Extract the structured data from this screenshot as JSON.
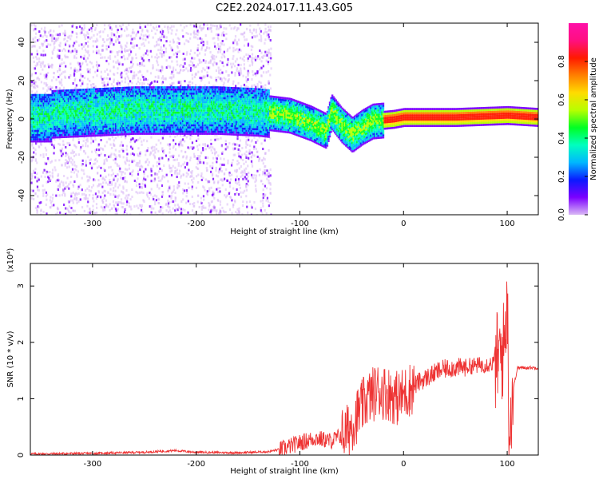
{
  "title": "C2E2.2024.017.11.43.G05",
  "chart_data": [
    {
      "type": "heatmap",
      "xlabel": "Height of straight line (km)",
      "ylabel": "Frequency (Hz)",
      "xlim": [
        -360,
        130
      ],
      "ylim": [
        -50,
        50
      ],
      "xticks": [
        -300,
        -200,
        -100,
        0,
        100
      ],
      "yticks": [
        -40,
        -20,
        0,
        20,
        40
      ],
      "colorbar": {
        "label": "Normalized spectral amplitude",
        "range": [
          0,
          1
        ],
        "ticks": [
          0.0,
          0.2,
          0.4,
          0.6,
          0.8
        ],
        "tick_labels": [
          "0.0",
          "0.2",
          "0.4",
          "0.6",
          "0.8"
        ],
        "colors": [
          "#d9b8f5",
          "#7b00ff",
          "#0a1aff",
          "#00b7ff",
          "#00ffbf",
          "#00ff24",
          "#b7ff00",
          "#ffdc00",
          "#ff8000",
          "#ff1a00",
          "#ff0f80",
          "#ff0fa8"
        ]
      },
      "ridge": [
        {
          "x": -340,
          "f": 3
        },
        {
          "x": -300,
          "f": 4
        },
        {
          "x": -260,
          "f": 5
        },
        {
          "x": -220,
          "f": 5
        },
        {
          "x": -180,
          "f": 5
        },
        {
          "x": -140,
          "f": 4
        },
        {
          "x": -110,
          "f": 2
        },
        {
          "x": -90,
          "f": -2
        },
        {
          "x": -75,
          "f": -6
        },
        {
          "x": -70,
          "f": 4
        },
        {
          "x": -60,
          "f": -3
        },
        {
          "x": -50,
          "f": -8
        },
        {
          "x": -40,
          "f": -4
        },
        {
          "x": -30,
          "f": -1
        },
        {
          "x": -10,
          "f": 0
        },
        {
          "x": 0,
          "f": 1
        },
        {
          "x": 50,
          "f": 1
        },
        {
          "x": 100,
          "f": 2
        },
        {
          "x": 130,
          "f": 1
        }
      ],
      "grid": false
    },
    {
      "type": "line",
      "xlabel": "Height of straight line (km)",
      "ylabel": "SNR (10 * v/v)",
      "multiplier": "(x10⁴)",
      "xlim": [
        -360,
        130
      ],
      "ylim": [
        0,
        3.4
      ],
      "xticks": [
        -300,
        -200,
        -100,
        0,
        100
      ],
      "yticks": [
        0,
        1,
        2,
        3
      ],
      "color": "#ee3333",
      "series": [
        {
          "x": [
            -360,
            -300,
            -250,
            -220,
            -200,
            -160,
            -130,
            -115,
            -100,
            -85,
            -70,
            -55,
            -45,
            -35,
            -25,
            -15,
            -5,
            5,
            15,
            25,
            35,
            45,
            55,
            65,
            75,
            85,
            92,
            97,
            100,
            102,
            105,
            110,
            120,
            130
          ],
          "values": [
            0.02,
            0.03,
            0.05,
            0.08,
            0.05,
            0.04,
            0.06,
            0.12,
            0.22,
            0.3,
            0.25,
            0.4,
            0.7,
            1.0,
            1.15,
            1.1,
            1.0,
            1.15,
            1.3,
            1.4,
            1.5,
            1.55,
            1.55,
            1.58,
            1.6,
            1.62,
            1.7,
            1.9,
            2.9,
            0.4,
            1.1,
            1.55,
            1.55,
            1.55
          ]
        }
      ],
      "grid": false
    }
  ]
}
